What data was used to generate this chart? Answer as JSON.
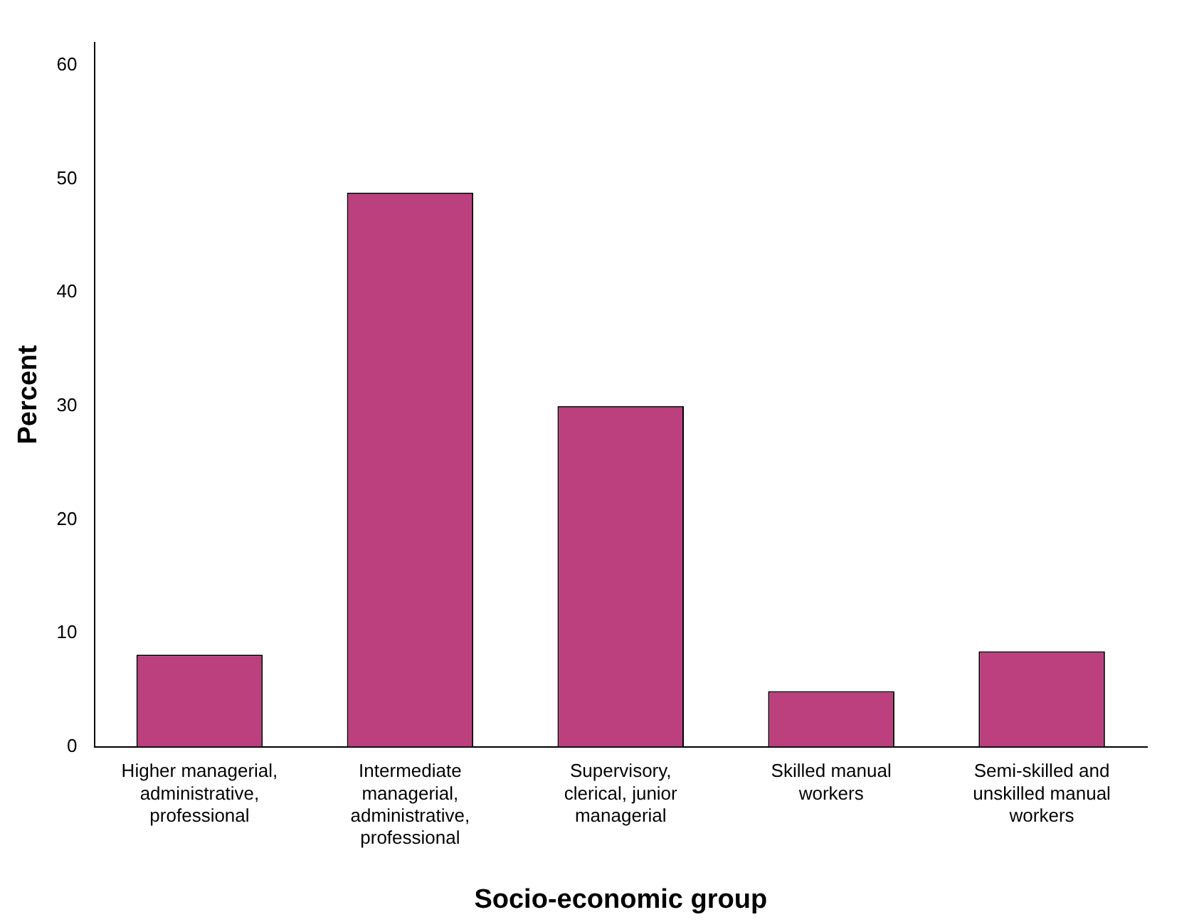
{
  "chart_data": {
    "type": "bar",
    "xlabel": "Socio-economic group",
    "ylabel": "Percent",
    "categories": [
      "Higher managerial, administrative, professional",
      "Intermediate managerial, administrative, professional",
      "Supervisory, clerical, junior managerial",
      "Skilled manual workers",
      "Semi-skilled and unskilled manual workers"
    ],
    "values": [
      8.1,
      48.8,
      30.0,
      4.9,
      8.4
    ],
    "color": "#bc3f7e",
    "ylim": [
      0,
      62
    ],
    "yticks": [
      0,
      10,
      20,
      30,
      40,
      50,
      60
    ],
    "grid": false,
    "legend": false
  }
}
